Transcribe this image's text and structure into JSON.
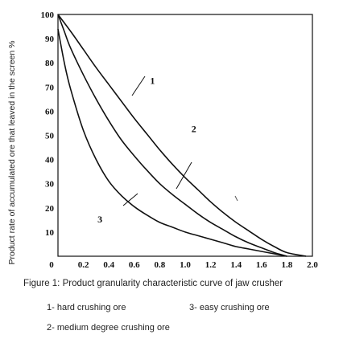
{
  "chart_data": {
    "type": "line",
    "xlim": [
      0,
      2.0
    ],
    "ylim": [
      0,
      100
    ],
    "x_ticks": [
      "0",
      "0.2",
      "0.4",
      "0.6",
      "0.8",
      "1.0",
      "1.2",
      "1.4",
      "1.6",
      "1.8",
      "2.0"
    ],
    "y_ticks": [
      "10",
      "20",
      "30",
      "40",
      "50",
      "60",
      "70",
      "80",
      "90",
      "100"
    ],
    "ylabel": "Product rate of accumulated ore that leaved in the screen %",
    "series": [
      {
        "name": "1",
        "points": [
          [
            0,
            100
          ],
          [
            0.1,
            93
          ],
          [
            0.2,
            85.5
          ],
          [
            0.3,
            78
          ],
          [
            0.4,
            71
          ],
          [
            0.5,
            64
          ],
          [
            0.6,
            57
          ],
          [
            0.7,
            50.5
          ],
          [
            0.8,
            44
          ],
          [
            0.9,
            38
          ],
          [
            1.0,
            32.5
          ],
          [
            1.1,
            27.5
          ],
          [
            1.2,
            22.5
          ],
          [
            1.3,
            18
          ],
          [
            1.4,
            14
          ],
          [
            1.5,
            10.5
          ],
          [
            1.6,
            7
          ],
          [
            1.7,
            4
          ],
          [
            1.8,
            1.5
          ],
          [
            1.95,
            0
          ]
        ]
      },
      {
        "name": "2",
        "points": [
          [
            0,
            100
          ],
          [
            0.05,
            93
          ],
          [
            0.1,
            86
          ],
          [
            0.2,
            75
          ],
          [
            0.3,
            65
          ],
          [
            0.4,
            56
          ],
          [
            0.5,
            48
          ],
          [
            0.6,
            41.5
          ],
          [
            0.7,
            35.5
          ],
          [
            0.8,
            30
          ],
          [
            0.9,
            25.5
          ],
          [
            1.0,
            21.5
          ],
          [
            1.1,
            17.5
          ],
          [
            1.2,
            14
          ],
          [
            1.3,
            11
          ],
          [
            1.4,
            8
          ],
          [
            1.5,
            5.5
          ],
          [
            1.6,
            3.5
          ],
          [
            1.7,
            1.5
          ],
          [
            1.8,
            0
          ]
        ]
      },
      {
        "name": "3",
        "points": [
          [
            0,
            94
          ],
          [
            0.05,
            80
          ],
          [
            0.1,
            69
          ],
          [
            0.2,
            52
          ],
          [
            0.3,
            40
          ],
          [
            0.4,
            31
          ],
          [
            0.5,
            25
          ],
          [
            0.6,
            20.5
          ],
          [
            0.7,
            17
          ],
          [
            0.8,
            14
          ],
          [
            0.9,
            12
          ],
          [
            1.0,
            10
          ],
          [
            1.1,
            8.5
          ],
          [
            1.2,
            7
          ],
          [
            1.3,
            5.5
          ],
          [
            1.4,
            4
          ],
          [
            1.5,
            3
          ],
          [
            1.6,
            2
          ],
          [
            1.7,
            1
          ],
          [
            1.8,
            0
          ]
        ]
      }
    ],
    "curve_labels": [
      {
        "text": "1",
        "x": 0.61,
        "y": 62
      },
      {
        "text": "2",
        "x": 0.91,
        "y": 39
      },
      {
        "text": "3",
        "x": 0.45,
        "y": 19
      }
    ],
    "grid": false
  },
  "caption": "Figure 1: Product granularity characteristic curve of jaw crusher",
  "legend": {
    "item1": "1- hard crushing ore",
    "item3": "3- easy crushing ore",
    "item2": "2- medium degree crushing ore"
  }
}
